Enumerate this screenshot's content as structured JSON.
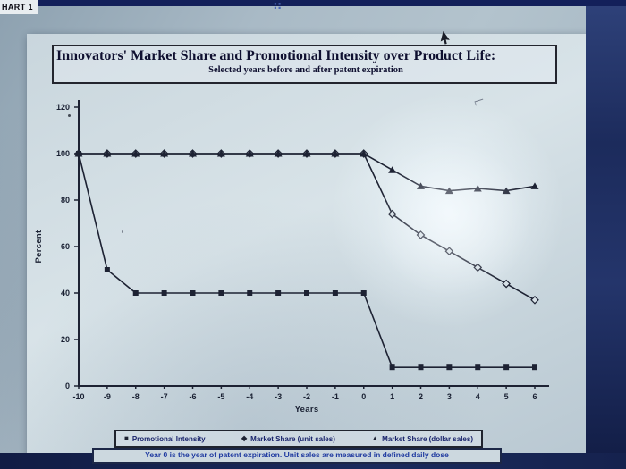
{
  "window": {
    "corner_label": "HART 1"
  },
  "icons": {
    "dots_grid": "∷"
  },
  "chart_data": {
    "type": "line",
    "title": "Innovators' Market Share and Promotional Intensity over Product Life:",
    "subtitle": "Selected years before and after patent expiration",
    "xlabel": "Years",
    "ylabel": "Percent",
    "xlim": [
      -10,
      6
    ],
    "ylim": [
      0,
      120
    ],
    "yticks": [
      0,
      20,
      40,
      60,
      80,
      100,
      120
    ],
    "x": [
      -10,
      -9,
      -8,
      -7,
      -6,
      -5,
      -4,
      -3,
      -2,
      -1,
      0,
      1,
      2,
      3,
      4,
      5,
      6
    ],
    "grid": false,
    "legend_position": "bottom",
    "series": [
      {
        "name": "Promotional Intensity",
        "marker": "square",
        "fill": "solid",
        "values": [
          100,
          50,
          40,
          40,
          40,
          40,
          40,
          40,
          40,
          40,
          40,
          8,
          8,
          8,
          8,
          8,
          8
        ]
      },
      {
        "name": "Market Share (unit sales)",
        "marker": "diamond",
        "fill": "open",
        "values": [
          100,
          100,
          100,
          100,
          100,
          100,
          100,
          100,
          100,
          100,
          100,
          74,
          65,
          58,
          51,
          44,
          37
        ]
      },
      {
        "name": "Market Share (dollar sales)",
        "marker": "triangle",
        "fill": "solid",
        "values": [
          100,
          100,
          100,
          100,
          100,
          100,
          100,
          100,
          100,
          100,
          100,
          93,
          86,
          84,
          85,
          84,
          86
        ]
      }
    ],
    "footnote": "Year 0 is the year of patent expiration. Unit sales are measured in defined daily dose"
  },
  "colors": {
    "ink": "#1d2233",
    "page": "#d7e1e7",
    "navy_band": "#17234e",
    "legend_text": "#19236b",
    "footnote_text": "#1f3aa0"
  }
}
